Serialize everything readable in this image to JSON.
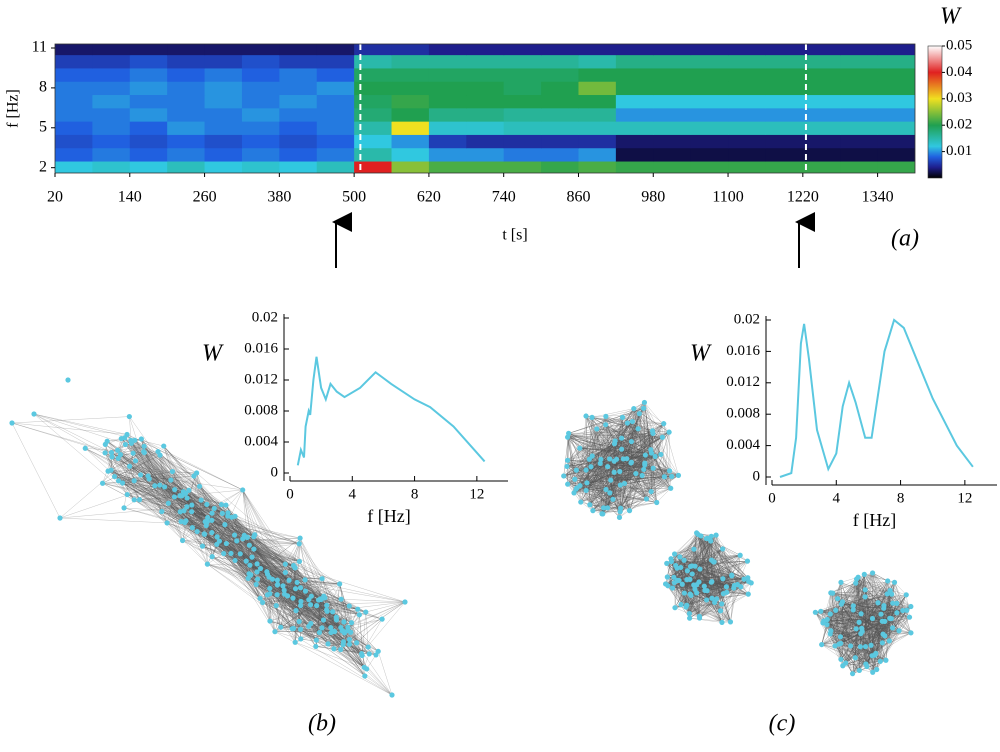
{
  "chart_data": [
    {
      "type": "heatmap",
      "panel": "(a)",
      "x_label": "t [s]",
      "y_label": "f [Hz]",
      "colorbar_title": "W",
      "x": [
        50,
        110,
        170,
        230,
        290,
        350,
        410,
        470,
        530,
        590,
        650,
        710,
        770,
        830,
        890,
        950,
        1010,
        1070,
        1130,
        1190,
        1250,
        1310,
        1370
      ],
      "y": [
        2,
        3,
        4,
        5,
        6,
        7,
        8,
        9,
        10,
        11
      ],
      "z": [
        [
          0.012,
          0.013,
          0.012,
          0.014,
          0.012,
          0.013,
          0.012,
          0.014,
          0.04,
          0.025,
          0.022,
          0.022,
          0.022,
          0.021,
          0.022,
          0.021,
          0.021,
          0.021,
          0.021,
          0.021,
          0.021,
          0.021,
          0.021
        ],
        [
          0.008,
          0.009,
          0.008,
          0.009,
          0.008,
          0.009,
          0.008,
          0.009,
          0.015,
          0.012,
          0.01,
          0.01,
          0.009,
          0.009,
          0.01,
          0.002,
          0.002,
          0.002,
          0.002,
          0.002,
          0.002,
          0.002,
          0.002
        ],
        [
          0.007,
          0.008,
          0.007,
          0.008,
          0.007,
          0.008,
          0.007,
          0.008,
          0.012,
          0.01,
          0.006,
          0.005,
          0.005,
          0.005,
          0.005,
          0.003,
          0.003,
          0.003,
          0.003,
          0.003,
          0.003,
          0.003,
          0.003
        ],
        [
          0.008,
          0.009,
          0.008,
          0.01,
          0.009,
          0.009,
          0.008,
          0.009,
          0.015,
          0.03,
          0.013,
          0.013,
          0.014,
          0.014,
          0.014,
          0.014,
          0.014,
          0.014,
          0.014,
          0.014,
          0.014,
          0.014,
          0.014
        ],
        [
          0.009,
          0.009,
          0.01,
          0.009,
          0.009,
          0.01,
          0.009,
          0.009,
          0.018,
          0.02,
          0.017,
          0.017,
          0.016,
          0.016,
          0.016,
          0.01,
          0.01,
          0.01,
          0.01,
          0.01,
          0.01,
          0.01,
          0.01
        ],
        [
          0.009,
          0.01,
          0.009,
          0.009,
          0.01,
          0.009,
          0.01,
          0.009,
          0.019,
          0.021,
          0.02,
          0.02,
          0.02,
          0.02,
          0.02,
          0.012,
          0.012,
          0.012,
          0.012,
          0.012,
          0.012,
          0.012,
          0.012
        ],
        [
          0.009,
          0.009,
          0.01,
          0.009,
          0.01,
          0.009,
          0.009,
          0.01,
          0.02,
          0.02,
          0.02,
          0.02,
          0.019,
          0.02,
          0.024,
          0.02,
          0.02,
          0.02,
          0.02,
          0.02,
          0.02,
          0.02,
          0.02
        ],
        [
          0.008,
          0.008,
          0.009,
          0.008,
          0.009,
          0.008,
          0.009,
          0.008,
          0.019,
          0.019,
          0.019,
          0.019,
          0.019,
          0.019,
          0.02,
          0.02,
          0.02,
          0.02,
          0.02,
          0.02,
          0.02,
          0.02,
          0.02
        ],
        [
          0.006,
          0.006,
          0.007,
          0.006,
          0.006,
          0.007,
          0.006,
          0.006,
          0.015,
          0.016,
          0.016,
          0.016,
          0.016,
          0.016,
          0.015,
          0.017,
          0.017,
          0.017,
          0.017,
          0.017,
          0.017,
          0.017,
          0.017
        ],
        [
          0.003,
          0.003,
          0.003,
          0.003,
          0.003,
          0.003,
          0.003,
          0.003,
          0.005,
          0.005,
          0.004,
          0.004,
          0.004,
          0.004,
          0.004,
          0.004,
          0.004,
          0.004,
          0.004,
          0.004,
          0.004,
          0.004,
          0.004
        ]
      ],
      "xlim": [
        20,
        1400
      ],
      "ylim": [
        1.6,
        11.3
      ],
      "zlim": [
        0,
        0.05
      ],
      "xticks": [
        20,
        140,
        260,
        380,
        500,
        620,
        740,
        860,
        980,
        1100,
        1220,
        1340
      ],
      "yticks": [
        2,
        5,
        8,
        11
      ],
      "zticks": [
        0.01,
        0.02,
        0.03,
        0.04,
        0.05
      ],
      "markers": [
        510,
        1225
      ],
      "colorscale": [
        [
          0,
          "#000000"
        ],
        [
          0.004,
          "#1e1e8c"
        ],
        [
          0.008,
          "#2060e0"
        ],
        [
          0.012,
          "#30c8e0"
        ],
        [
          0.02,
          "#20a050"
        ],
        [
          0.03,
          "#f0e020"
        ],
        [
          0.04,
          "#e02020"
        ],
        [
          0.05,
          "#ffffff"
        ]
      ]
    },
    {
      "type": "line",
      "panel": "(b)",
      "x_label": "f [Hz]",
      "y_label": "W",
      "color": "#5bc8e0",
      "x": [
        0.5,
        0.7,
        0.9,
        1.0,
        1.2,
        1.3,
        1.5,
        1.7,
        2.0,
        2.3,
        2.6,
        3.0,
        3.5,
        4.5,
        5.5,
        6.5,
        8,
        9,
        10.5,
        12.5
      ],
      "values": [
        0.001,
        0.003,
        0.002,
        0.006,
        0.008,
        0.0075,
        0.012,
        0.015,
        0.011,
        0.0095,
        0.0115,
        0.0105,
        0.0098,
        0.011,
        0.013,
        0.0115,
        0.0095,
        0.0085,
        0.006,
        0.0015
      ],
      "xlim": [
        0,
        14
      ],
      "ylim": [
        0,
        0.02
      ],
      "xticks": [
        0,
        4,
        8,
        12
      ],
      "yticks": [
        0,
        0.004,
        0.008,
        0.012,
        0.016,
        0.02
      ]
    },
    {
      "type": "line",
      "panel": "(c)",
      "x_label": "f [Hz]",
      "y_label": "W",
      "color": "#5bc8e0",
      "x": [
        0.5,
        1.2,
        1.5,
        1.8,
        2.0,
        2.3,
        2.8,
        3.5,
        4.0,
        4.4,
        4.8,
        5.2,
        5.8,
        6.2,
        7.0,
        7.6,
        8.2,
        9,
        10,
        11.5,
        12.5
      ],
      "values": [
        0,
        0.0005,
        0.005,
        0.017,
        0.0195,
        0.015,
        0.006,
        0.001,
        0.003,
        0.009,
        0.012,
        0.0095,
        0.005,
        0.005,
        0.016,
        0.02,
        0.019,
        0.015,
        0.01,
        0.004,
        0.0013
      ],
      "xlim": [
        0,
        14
      ],
      "ylim": [
        0,
        0.02
      ],
      "xticks": [
        0,
        4,
        8,
        12
      ],
      "yticks": [
        0,
        0.004,
        0.008,
        0.012,
        0.016,
        0.02
      ]
    }
  ]
}
